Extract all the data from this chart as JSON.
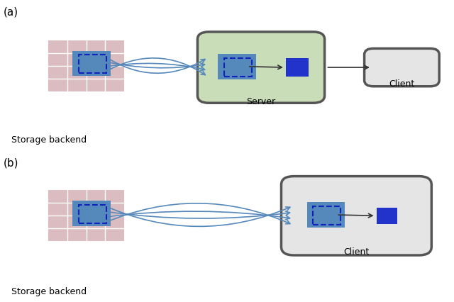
{
  "fig_width": 6.4,
  "fig_height": 4.27,
  "bg_color": "#ffffff",
  "panel_labels": [
    "(a)",
    "(b)"
  ],
  "panel_label_fontsize": 11,
  "tile_color": "#dbbcc0",
  "grid_line_color": "#ffffff",
  "blue_tile": "#5588bb",
  "blue_dark": "#2233cc",
  "dashed_color": "#1122bb",
  "green_fill": "#c8ddb8",
  "gray_fill": "#e5e5e5",
  "gray_border": "#555555",
  "curve_color": "#5588bb",
  "label_fontsize": 9,
  "storage_label": "Storage backend",
  "server_label": "Server",
  "client_label": "Client",
  "tile_size": 0.42
}
